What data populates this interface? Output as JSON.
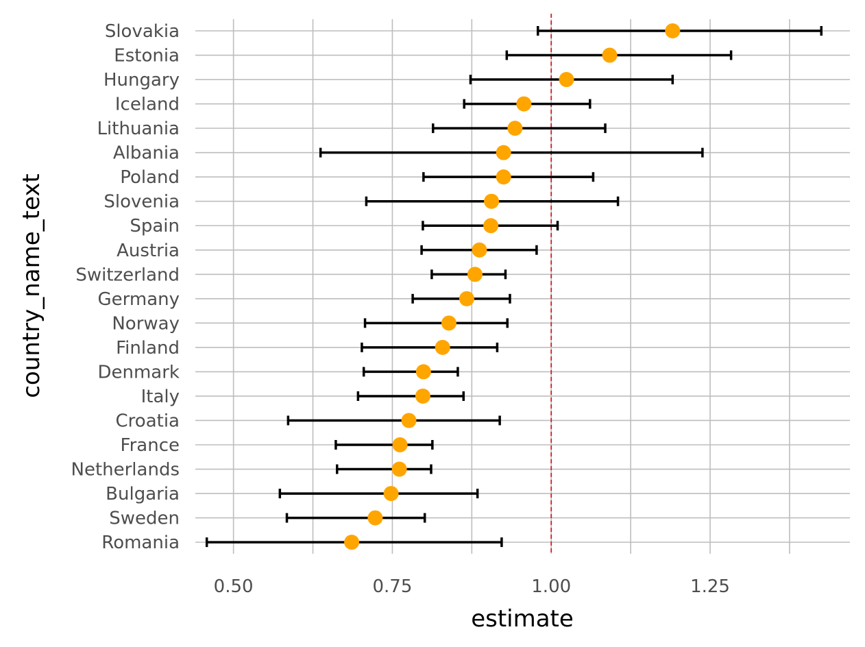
{
  "chart_data": {
    "type": "scatter",
    "subtype": "point-range",
    "xlabel": "estimate",
    "ylabel": "country_name_text",
    "xlim": [
      0.44,
      1.47
    ],
    "x_ticks": [
      0.5,
      0.75,
      1.0,
      1.25
    ],
    "x_tick_labels": [
      "0.50",
      "0.75",
      "1.00",
      "1.25"
    ],
    "reference_line": {
      "x": 1.0,
      "color": "#d7191c",
      "style": "dashed"
    },
    "point_color": "#ffa500",
    "errorbar_color": "#000000",
    "grid": true,
    "legend": "none",
    "categories": [
      "Slovakia",
      "Estonia",
      "Hungary",
      "Iceland",
      "Lithuania",
      "Albania",
      "Poland",
      "Slovenia",
      "Spain",
      "Austria",
      "Switzerland",
      "Germany",
      "Norway",
      "Finland",
      "Denmark",
      "Italy",
      "Croatia",
      "France",
      "Netherlands",
      "Bulgaria",
      "Sweden",
      "Romania"
    ],
    "estimate": [
      1.191,
      1.092,
      1.024,
      0.957,
      0.943,
      0.925,
      0.925,
      0.906,
      0.905,
      0.887,
      0.88,
      0.867,
      0.839,
      0.829,
      0.799,
      0.798,
      0.776,
      0.762,
      0.761,
      0.748,
      0.723,
      0.686
    ],
    "conf_low": [
      0.979,
      0.93,
      0.873,
      0.863,
      0.814,
      0.637,
      0.799,
      0.709,
      0.798,
      0.796,
      0.812,
      0.782,
      0.707,
      0.702,
      0.705,
      0.696,
      0.586,
      0.661,
      0.663,
      0.573,
      0.584,
      0.458
    ],
    "conf_high": [
      1.425,
      1.283,
      1.191,
      1.061,
      1.085,
      1.238,
      1.066,
      1.105,
      1.01,
      0.977,
      0.928,
      0.935,
      0.931,
      0.915,
      0.853,
      0.862,
      0.919,
      0.813,
      0.811,
      0.884,
      0.801,
      0.922
    ]
  }
}
